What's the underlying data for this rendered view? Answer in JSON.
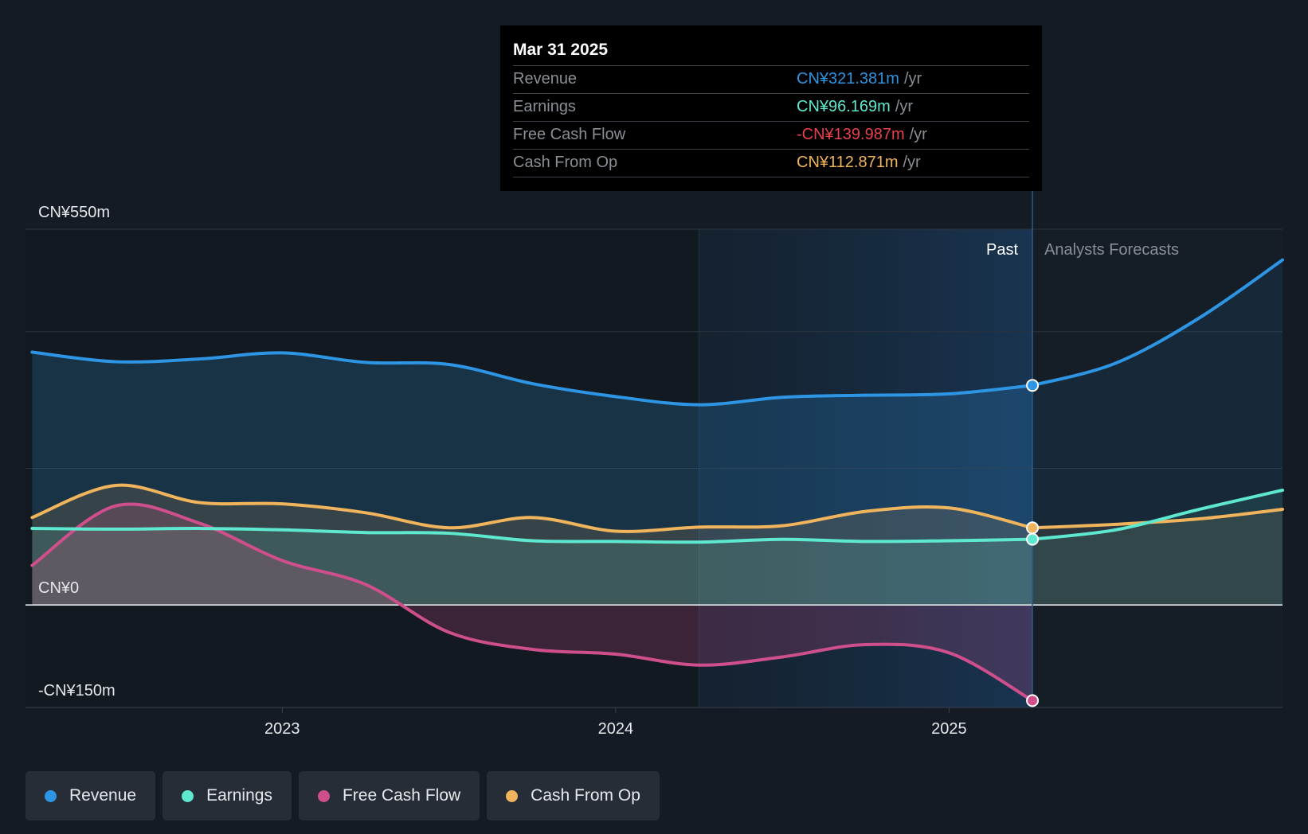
{
  "tooltip": {
    "date": "Mar 31 2025",
    "rows": [
      {
        "label": "Revenue",
        "value": "CN¥321.381m",
        "unit": "/yr",
        "color": "#2d95e3"
      },
      {
        "label": "Earnings",
        "value": "CN¥96.169m",
        "unit": "/yr",
        "color": "#5ee8d0"
      },
      {
        "label": "Free Cash Flow",
        "value": "-CN¥139.987m",
        "unit": "/yr",
        "color": "#e8414b"
      },
      {
        "label": "Cash From Op",
        "value": "CN¥112.871m",
        "unit": "/yr",
        "color": "#f0b45c"
      }
    ]
  },
  "chart_data": {
    "type": "area",
    "ylim": [
      -150,
      550
    ],
    "y_tick_labels": [
      "CN¥550m",
      "CN¥0",
      "-CN¥150m"
    ],
    "x_tick_labels": [
      "2023",
      "2024",
      "2025"
    ],
    "past_label": "Past",
    "forecast_label": "Analysts Forecasts",
    "x_range": [
      2022.23,
      2026.0
    ],
    "highlight_start": 2024.25,
    "divider_x": 2025.25,
    "series": [
      {
        "name": "Revenue",
        "color": "#2d95e3",
        "points": [
          [
            2022.25,
            370
          ],
          [
            2022.5,
            356
          ],
          [
            2022.75,
            360
          ],
          [
            2023.0,
            369
          ],
          [
            2023.25,
            355
          ],
          [
            2023.5,
            352
          ],
          [
            2023.75,
            324
          ],
          [
            2024.0,
            305
          ],
          [
            2024.25,
            293
          ],
          [
            2024.5,
            304
          ],
          [
            2024.75,
            307
          ],
          [
            2025.0,
            309
          ],
          [
            2025.25,
            321.381
          ]
        ],
        "forecast": [
          [
            2025.25,
            321.381
          ],
          [
            2025.5,
            354
          ],
          [
            2025.75,
            420
          ],
          [
            2026.0,
            505
          ]
        ]
      },
      {
        "name": "Earnings",
        "color": "#5ee8d0",
        "points": [
          [
            2022.25,
            112
          ],
          [
            2022.5,
            111
          ],
          [
            2022.75,
            112
          ],
          [
            2023.0,
            110
          ],
          [
            2023.25,
            106
          ],
          [
            2023.5,
            105
          ],
          [
            2023.75,
            94
          ],
          [
            2024.0,
            93
          ],
          [
            2024.25,
            92
          ],
          [
            2024.5,
            96
          ],
          [
            2024.75,
            93
          ],
          [
            2025.0,
            94
          ],
          [
            2025.25,
            96.169
          ]
        ],
        "forecast": [
          [
            2025.25,
            96.169
          ],
          [
            2025.5,
            110
          ],
          [
            2025.75,
            140
          ],
          [
            2026.0,
            168
          ]
        ]
      },
      {
        "name": "Free Cash Flow",
        "color": "#cf4f8c",
        "points": [
          [
            2022.25,
            58
          ],
          [
            2022.5,
            145
          ],
          [
            2022.75,
            120
          ],
          [
            2023.0,
            65
          ],
          [
            2023.25,
            30
          ],
          [
            2023.5,
            -40
          ],
          [
            2023.75,
            -65
          ],
          [
            2024.0,
            -72
          ],
          [
            2024.25,
            -88
          ],
          [
            2024.5,
            -76
          ],
          [
            2024.75,
            -58
          ],
          [
            2025.0,
            -70
          ],
          [
            2025.25,
            -139.987
          ]
        ],
        "forecast": []
      },
      {
        "name": "Cash From Op",
        "color": "#f0b45c",
        "points": [
          [
            2022.25,
            128
          ],
          [
            2022.5,
            175
          ],
          [
            2022.75,
            150
          ],
          [
            2023.0,
            148
          ],
          [
            2023.25,
            135
          ],
          [
            2023.5,
            113
          ],
          [
            2023.75,
            128
          ],
          [
            2024.0,
            108
          ],
          [
            2024.25,
            114
          ],
          [
            2024.5,
            116
          ],
          [
            2024.75,
            137
          ],
          [
            2025.0,
            142
          ],
          [
            2025.25,
            112.871
          ]
        ],
        "forecast": [
          [
            2025.25,
            112.871
          ],
          [
            2025.5,
            118
          ],
          [
            2025.75,
            126
          ],
          [
            2026.0,
            140
          ]
        ]
      }
    ]
  },
  "legend": [
    {
      "label": "Revenue",
      "color": "#2d95e3"
    },
    {
      "label": "Earnings",
      "color": "#5ee8d0"
    },
    {
      "label": "Free Cash Flow",
      "color": "#cf4f8c"
    },
    {
      "label": "Cash From Op",
      "color": "#f0b45c"
    }
  ]
}
